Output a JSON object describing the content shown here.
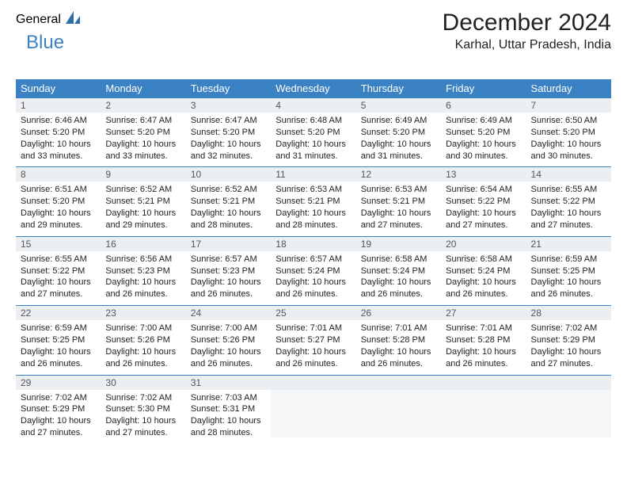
{
  "logo": {
    "part1": "General",
    "part2": "Blue"
  },
  "header": {
    "month_title": "December 2024",
    "location": "Karhal, Uttar Pradesh, India"
  },
  "colors": {
    "brand_blue": "#3b82c4",
    "header_row_bg": "#3b82c4",
    "header_row_text": "#ffffff",
    "daynum_bg": "#eceff1",
    "daynum_text": "#555555",
    "body_text": "#222222",
    "background": "#ffffff",
    "month_title_fontsize": 30,
    "location_fontsize": 16,
    "dayheader_fontsize": 13,
    "body_fontsize": 11
  },
  "weekdays": [
    "Sunday",
    "Monday",
    "Tuesday",
    "Wednesday",
    "Thursday",
    "Friday",
    "Saturday"
  ],
  "days": [
    {
      "n": "1",
      "sunrise": "6:46 AM",
      "sunset": "5:20 PM",
      "dl": "10 hours and 33 minutes."
    },
    {
      "n": "2",
      "sunrise": "6:47 AM",
      "sunset": "5:20 PM",
      "dl": "10 hours and 33 minutes."
    },
    {
      "n": "3",
      "sunrise": "6:47 AM",
      "sunset": "5:20 PM",
      "dl": "10 hours and 32 minutes."
    },
    {
      "n": "4",
      "sunrise": "6:48 AM",
      "sunset": "5:20 PM",
      "dl": "10 hours and 31 minutes."
    },
    {
      "n": "5",
      "sunrise": "6:49 AM",
      "sunset": "5:20 PM",
      "dl": "10 hours and 31 minutes."
    },
    {
      "n": "6",
      "sunrise": "6:49 AM",
      "sunset": "5:20 PM",
      "dl": "10 hours and 30 minutes."
    },
    {
      "n": "7",
      "sunrise": "6:50 AM",
      "sunset": "5:20 PM",
      "dl": "10 hours and 30 minutes."
    },
    {
      "n": "8",
      "sunrise": "6:51 AM",
      "sunset": "5:20 PM",
      "dl": "10 hours and 29 minutes."
    },
    {
      "n": "9",
      "sunrise": "6:52 AM",
      "sunset": "5:21 PM",
      "dl": "10 hours and 29 minutes."
    },
    {
      "n": "10",
      "sunrise": "6:52 AM",
      "sunset": "5:21 PM",
      "dl": "10 hours and 28 minutes."
    },
    {
      "n": "11",
      "sunrise": "6:53 AM",
      "sunset": "5:21 PM",
      "dl": "10 hours and 28 minutes."
    },
    {
      "n": "12",
      "sunrise": "6:53 AM",
      "sunset": "5:21 PM",
      "dl": "10 hours and 27 minutes."
    },
    {
      "n": "13",
      "sunrise": "6:54 AM",
      "sunset": "5:22 PM",
      "dl": "10 hours and 27 minutes."
    },
    {
      "n": "14",
      "sunrise": "6:55 AM",
      "sunset": "5:22 PM",
      "dl": "10 hours and 27 minutes."
    },
    {
      "n": "15",
      "sunrise": "6:55 AM",
      "sunset": "5:22 PM",
      "dl": "10 hours and 27 minutes."
    },
    {
      "n": "16",
      "sunrise": "6:56 AM",
      "sunset": "5:23 PM",
      "dl": "10 hours and 26 minutes."
    },
    {
      "n": "17",
      "sunrise": "6:57 AM",
      "sunset": "5:23 PM",
      "dl": "10 hours and 26 minutes."
    },
    {
      "n": "18",
      "sunrise": "6:57 AM",
      "sunset": "5:24 PM",
      "dl": "10 hours and 26 minutes."
    },
    {
      "n": "19",
      "sunrise": "6:58 AM",
      "sunset": "5:24 PM",
      "dl": "10 hours and 26 minutes."
    },
    {
      "n": "20",
      "sunrise": "6:58 AM",
      "sunset": "5:24 PM",
      "dl": "10 hours and 26 minutes."
    },
    {
      "n": "21",
      "sunrise": "6:59 AM",
      "sunset": "5:25 PM",
      "dl": "10 hours and 26 minutes."
    },
    {
      "n": "22",
      "sunrise": "6:59 AM",
      "sunset": "5:25 PM",
      "dl": "10 hours and 26 minutes."
    },
    {
      "n": "23",
      "sunrise": "7:00 AM",
      "sunset": "5:26 PM",
      "dl": "10 hours and 26 minutes."
    },
    {
      "n": "24",
      "sunrise": "7:00 AM",
      "sunset": "5:26 PM",
      "dl": "10 hours and 26 minutes."
    },
    {
      "n": "25",
      "sunrise": "7:01 AM",
      "sunset": "5:27 PM",
      "dl": "10 hours and 26 minutes."
    },
    {
      "n": "26",
      "sunrise": "7:01 AM",
      "sunset": "5:28 PM",
      "dl": "10 hours and 26 minutes."
    },
    {
      "n": "27",
      "sunrise": "7:01 AM",
      "sunset": "5:28 PM",
      "dl": "10 hours and 26 minutes."
    },
    {
      "n": "28",
      "sunrise": "7:02 AM",
      "sunset": "5:29 PM",
      "dl": "10 hours and 27 minutes."
    },
    {
      "n": "29",
      "sunrise": "7:02 AM",
      "sunset": "5:29 PM",
      "dl": "10 hours and 27 minutes."
    },
    {
      "n": "30",
      "sunrise": "7:02 AM",
      "sunset": "5:30 PM",
      "dl": "10 hours and 27 minutes."
    },
    {
      "n": "31",
      "sunrise": "7:03 AM",
      "sunset": "5:31 PM",
      "dl": "10 hours and 28 minutes."
    }
  ],
  "labels": {
    "sunrise": "Sunrise: ",
    "sunset": "Sunset: ",
    "daylight": "Daylight: "
  },
  "layout": {
    "first_weekday_index": 0,
    "total_cells": 35,
    "columns": 7,
    "rows": 5
  }
}
